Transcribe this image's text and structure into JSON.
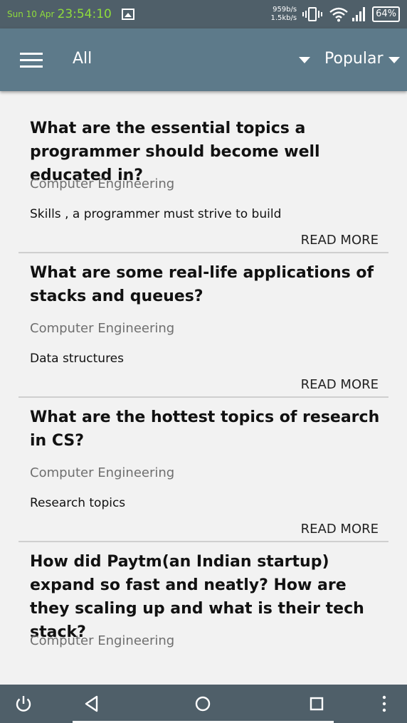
{
  "status_bar": {
    "date": "Sun 10 Apr",
    "time": "23:54:10",
    "speed_up": "959b/s",
    "speed_down": "1.5kb/s",
    "battery": "64%",
    "icons": [
      "image-icon",
      "vibrate-icon",
      "wifi-icon",
      "signal-icon",
      "battery-icon"
    ]
  },
  "toolbar": {
    "menu_icon": "hamburger-menu-icon",
    "filter_label": "All",
    "sort_label": "Popular"
  },
  "feed": {
    "read_more_label": "READ MORE",
    "cards": [
      {
        "title": "What are the essential topics a programmer should become well educated in?",
        "category": "Computer Engineering",
        "summary": "Skills , a programmer must strive to build"
      },
      {
        "title": "What are some real-life applications of stacks and queues?",
        "category": "Computer Engineering",
        "summary": "Data structures"
      },
      {
        "title": "What are the hottest topics of research in CS?",
        "category": "Computer Engineering",
        "summary": "Research topics"
      },
      {
        "title": "How did Paytm(an Indian startup) expand so fast and neatly? How are they scaling up and what is their tech stack?",
        "category": "Computer Engineering",
        "summary": ""
      }
    ]
  },
  "nav_bar": {
    "icons": [
      "power-icon",
      "back-icon",
      "home-icon",
      "recents-icon",
      "more-icon"
    ]
  },
  "colors": {
    "status_bar": "#4f5f69",
    "toolbar": "#5d7a8a",
    "clock": "#8fdc3c",
    "background": "#f2f2f2"
  }
}
